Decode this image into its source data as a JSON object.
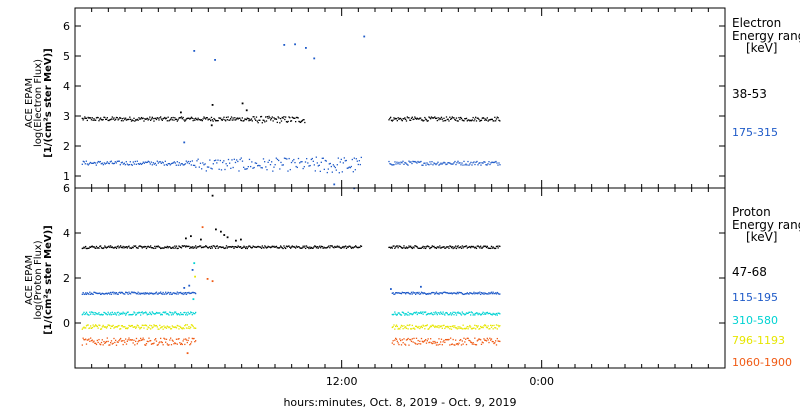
{
  "chart_data": [
    {
      "type": "scatter",
      "panel": "electron",
      "ylabel_lines": [
        "ACE EPAM",
        "log(Electron Flux)",
        "[1/(cm²s ster MeV)]"
      ],
      "ylim": [
        0.6,
        6.6
      ],
      "yticks": [
        1,
        2,
        3,
        4,
        5,
        6
      ],
      "legend_title": [
        "Electron",
        "Energy ranges",
        "[keV]"
      ],
      "series": [
        {
          "name": "38-53",
          "color": "#000000",
          "segments": [
            {
              "x_range": [
                -3.6,
                6.4
              ],
              "base": 2.92,
              "jitter": 0.07,
              "step": 0.05
            },
            {
              "x_range": [
                6.4,
                9.8
              ],
              "base": 2.9,
              "jitter": 0.11,
              "step": 0.05
            },
            {
              "x_range": [
                14.8,
                21.5
              ],
              "base": 2.92,
              "jitter": 0.07,
              "step": 0.05
            }
          ],
          "dip": {
            "x_range": [
              10.3,
              11.9
            ],
            "value": 2.72
          },
          "points": [
            {
              "x": 2.3,
              "y": 3.15
            },
            {
              "x": 4.2,
              "y": 3.4
            },
            {
              "x": 4.15,
              "y": 2.72
            },
            {
              "x": 6.0,
              "y": 3.45
            },
            {
              "x": 6.25,
              "y": 3.22
            }
          ]
        },
        {
          "name": "175-315",
          "color": "#1e5ac8",
          "segments": [
            {
              "x_range": [
                -3.6,
                3.0
              ],
              "base": 1.45,
              "jitter": 0.07,
              "step": 0.06
            },
            {
              "x_range": [
                3.0,
                10.2
              ],
              "base": 1.4,
              "jitter": 0.22,
              "step": 0.07
            },
            {
              "x_range": [
                10.2,
                13.2
              ],
              "base": 1.38,
              "jitter": 0.28,
              "step": 0.06
            },
            {
              "x_range": [
                14.8,
                21.5
              ],
              "base": 1.45,
              "jitter": 0.07,
              "step": 0.06
            }
          ],
          "points": [
            {
              "x": 2.5,
              "y": 2.15
            },
            {
              "x": 3.1,
              "y": 5.2
            },
            {
              "x": 4.35,
              "y": 4.9
            },
            {
              "x": 8.5,
              "y": 5.4
            },
            {
              "x": 9.15,
              "y": 5.42
            },
            {
              "x": 9.8,
              "y": 5.3
            },
            {
              "x": 10.3,
              "y": 4.95
            },
            {
              "x": 13.3,
              "y": 5.68
            },
            {
              "x": 11.5,
              "y": 0.75
            },
            {
              "x": 12.7,
              "y": 0.62
            }
          ]
        }
      ]
    },
    {
      "type": "scatter",
      "panel": "proton",
      "ylabel_lines": [
        "ACE EPAM",
        "log(Proton Flux)",
        "[1/(cm²s ster MeV)]"
      ],
      "ylim": [
        -2.0,
        6.0
      ],
      "yticks": [
        0,
        2,
        4,
        6
      ],
      "legend_title": [
        "Proton",
        "Energy ranges",
        "[keV]"
      ],
      "series": [
        {
          "name": "47-68",
          "color": "#000000",
          "segments": [
            {
              "x_range": [
                -3.6,
                13.2
              ],
              "base": 3.4,
              "jitter": 0.06,
              "step": 0.05
            },
            {
              "x_range": [
                14.8,
                21.5
              ],
              "base": 3.4,
              "jitter": 0.06,
              "step": 0.05
            }
          ],
          "points": [
            {
              "x": 2.6,
              "y": 3.8
            },
            {
              "x": 2.9,
              "y": 3.9
            },
            {
              "x": 3.5,
              "y": 3.75
            },
            {
              "x": 4.2,
              "y": 5.7
            },
            {
              "x": 4.4,
              "y": 4.2
            },
            {
              "x": 4.7,
              "y": 4.1
            },
            {
              "x": 4.9,
              "y": 3.95
            },
            {
              "x": 5.1,
              "y": 3.85
            },
            {
              "x": 5.6,
              "y": 3.7
            },
            {
              "x": 5.9,
              "y": 3.75
            }
          ]
        },
        {
          "name": "115-195",
          "color": "#1e5ac8",
          "segments": [
            {
              "x_range": [
                -3.6,
                3.2
              ],
              "base": 1.35,
              "jitter": 0.05,
              "step": 0.05
            },
            {
              "x_range": [
                15.0,
                21.5
              ],
              "base": 1.35,
              "jitter": 0.05,
              "step": 0.05
            }
          ],
          "points": [
            {
              "x": 2.5,
              "y": 1.6
            },
            {
              "x": 2.8,
              "y": 1.7
            },
            {
              "x": 3.0,
              "y": 2.4
            },
            {
              "x": 14.9,
              "y": 1.55
            },
            {
              "x": 16.7,
              "y": 1.65
            }
          ]
        },
        {
          "name": "310-580",
          "color": "#00d2d2",
          "segments": [
            {
              "x_range": [
                -3.6,
                3.2
              ],
              "base": 0.45,
              "jitter": 0.07,
              "step": 0.05
            },
            {
              "x_range": [
                15.0,
                21.5
              ],
              "base": 0.45,
              "jitter": 0.07,
              "step": 0.05
            }
          ],
          "points": [
            {
              "x": 3.1,
              "y": 2.7
            },
            {
              "x": 3.05,
              "y": 1.1
            }
          ]
        },
        {
          "name": "796-1193",
          "color": "#e6e600",
          "segments": [
            {
              "x_range": [
                -3.6,
                3.2
              ],
              "base": -0.15,
              "jitter": 0.1,
              "step": 0.05
            },
            {
              "x_range": [
                15.0,
                21.5
              ],
              "base": -0.15,
              "jitter": 0.1,
              "step": 0.05
            }
          ],
          "points": [
            {
              "x": 3.15,
              "y": 2.1
            }
          ]
        },
        {
          "name": "1060-1900",
          "color": "#f05a14",
          "segments": [
            {
              "x_range": [
                -3.6,
                3.2
              ],
              "base": -0.8,
              "jitter": 0.16,
              "step": 0.05
            },
            {
              "x_range": [
                15.0,
                21.5
              ],
              "base": -0.8,
              "jitter": 0.16,
              "step": 0.05
            }
          ],
          "points": [
            {
              "x": 3.6,
              "y": 4.3
            },
            {
              "x": 3.9,
              "y": 2.0
            },
            {
              "x": 4.2,
              "y": 1.9
            },
            {
              "x": 2.7,
              "y": -1.3
            }
          ]
        }
      ]
    }
  ],
  "x_axis": {
    "range_hours": [
      -4.0,
      35.0
    ],
    "major_ticks": [
      {
        "x": 12,
        "label": "12:00"
      },
      {
        "x": 24,
        "label": "0:00"
      }
    ],
    "minor_step_hours": 1,
    "xlabel": "hours:minutes, Oct.  8, 2019 - Oct.  9, 2019"
  }
}
